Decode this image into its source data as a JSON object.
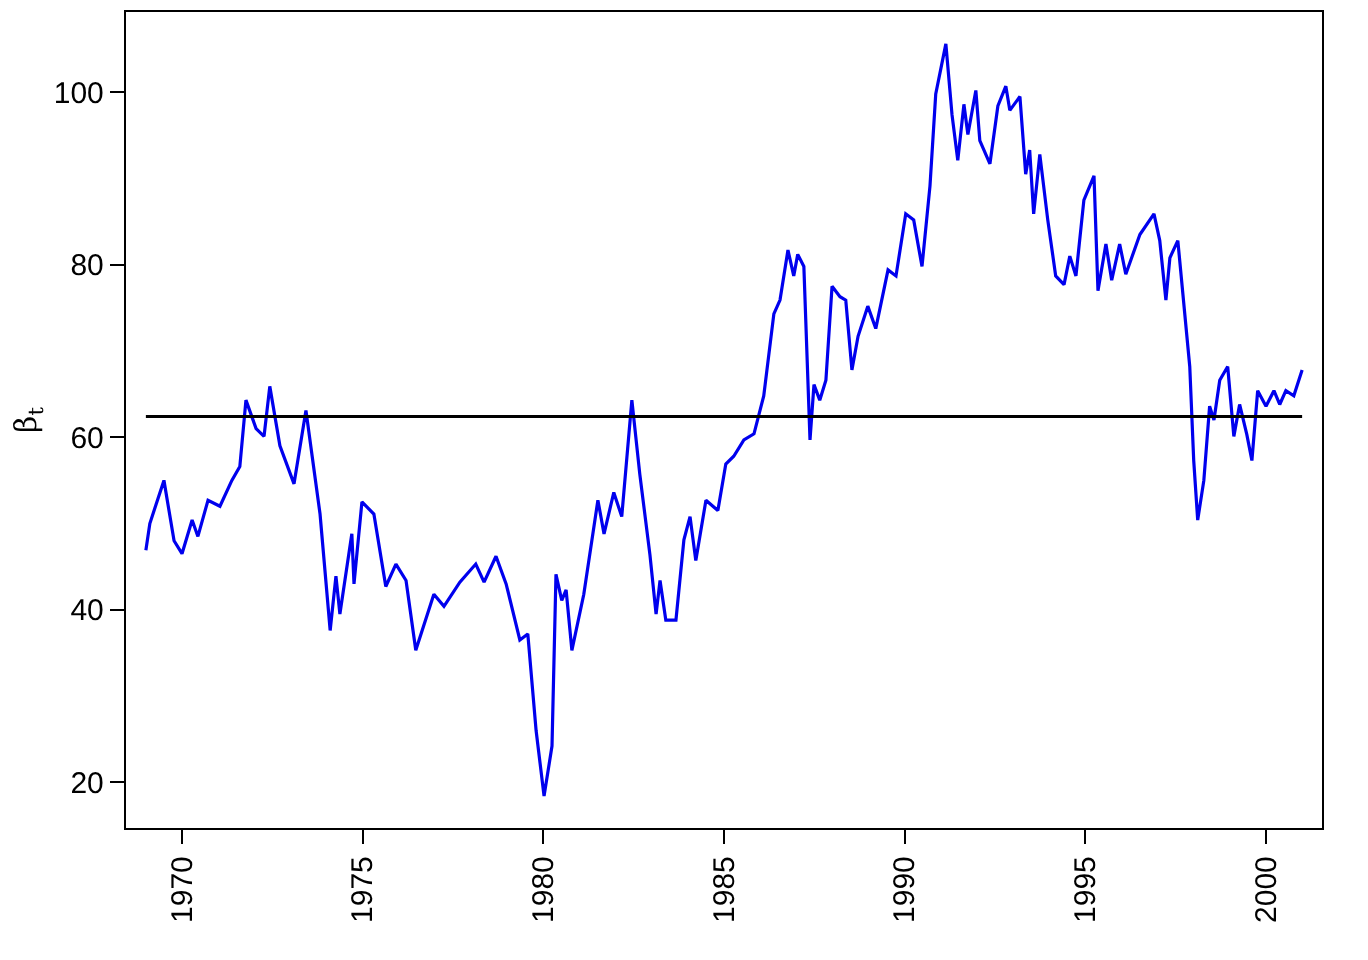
{
  "chart_data": {
    "type": "line",
    "ylabel": "β$_{t}$",
    "x": [
      1969.0,
      1969.11,
      1969.5,
      1969.78,
      1970.0,
      1970.28,
      1970.44,
      1970.72,
      1971.05,
      1971.38,
      1971.6,
      1971.77,
      1972.05,
      1972.27,
      1972.43,
      1972.71,
      1973.1,
      1973.43,
      1973.82,
      1974.1,
      1974.26,
      1974.37,
      1974.7,
      1974.76,
      1974.98,
      1975.31,
      1975.64,
      1975.92,
      1976.2,
      1976.47,
      1976.97,
      1977.25,
      1977.69,
      1978.13,
      1978.36,
      1978.69,
      1978.97,
      1979.35,
      1979.57,
      1979.8,
      1980.02,
      1980.24,
      1980.35,
      1980.51,
      1980.63,
      1980.79,
      1981.12,
      1981.51,
      1981.68,
      1981.95,
      1982.17,
      1982.45,
      1982.67,
      1982.95,
      1983.12,
      1983.23,
      1983.39,
      1983.67,
      1983.89,
      1984.06,
      1984.22,
      1984.5,
      1984.83,
      1985.05,
      1985.27,
      1985.55,
      1985.83,
      1986.1,
      1986.38,
      1986.55,
      1986.77,
      1986.93,
      1987.04,
      1987.21,
      1987.38,
      1987.49,
      1987.65,
      1987.82,
      1987.99,
      1988.21,
      1988.37,
      1988.54,
      1988.71,
      1988.98,
      1989.2,
      1989.54,
      1989.76,
      1990.03,
      1990.25,
      1990.48,
      1990.7,
      1990.86,
      1991.14,
      1991.31,
      1991.47,
      1991.64,
      1991.75,
      1991.97,
      1992.08,
      1992.36,
      1992.58,
      1992.8,
      1992.91,
      1993.19,
      1993.35,
      1993.46,
      1993.57,
      1993.74,
      1993.96,
      1994.18,
      1994.41,
      1994.57,
      1994.74,
      1994.96,
      1995.24,
      1995.35,
      1995.57,
      1995.73,
      1995.95,
      1996.12,
      1996.51,
      1996.9,
      1997.06,
      1997.23,
      1997.34,
      1997.56,
      1997.89,
      1998.0,
      1998.11,
      1998.28,
      1998.44,
      1998.56,
      1998.72,
      1998.94,
      1999.11,
      1999.27,
      1999.47,
      1999.61,
      1999.77,
      2000.0,
      2000.22,
      2000.38,
      2000.55,
      2000.77,
      2001.0
    ],
    "series": [
      {
        "color": "#0000ee",
        "values": [
          46.9,
          50,
          55,
          48,
          46.5,
          50.4,
          48.5,
          52.7,
          52,
          55,
          56.6,
          64.3,
          61,
          60.1,
          65.9,
          59,
          54.6,
          63.1,
          51.1,
          37.6,
          43.9,
          39.5,
          48.8,
          43,
          52.5,
          51.1,
          42.7,
          45.3,
          43.4,
          35.3,
          41.8,
          40.4,
          43.2,
          45.3,
          43.2,
          46.2,
          43,
          36.5,
          37.2,
          26,
          18.4,
          24.2,
          44.1,
          41.1,
          42.3,
          35.3,
          41.8,
          52.7,
          48.8,
          53.6,
          50.8,
          64.3,
          55.7,
          46.4,
          39.5,
          43.4,
          38.8,
          38.8,
          48.1,
          50.8,
          45.7,
          52.7,
          51.5,
          56.9,
          57.8,
          59.7,
          60.4,
          64.8,
          74.3,
          75.9,
          81.7,
          78.7,
          81.2,
          79.8,
          59.7,
          66.1,
          64.3,
          66.6,
          77.5,
          76.3,
          75.9,
          67.8,
          71.7,
          75.2,
          72.6,
          79.4,
          78.7,
          85.9,
          85.2,
          79.8,
          89.1,
          99.8,
          105.6,
          97.4,
          92.1,
          98.6,
          95.1,
          100.2,
          94.4,
          91.7,
          98.4,
          100.7,
          97.9,
          99.5,
          90.5,
          93.3,
          85.9,
          92.8,
          85.2,
          78.7,
          77.7,
          81,
          78.7,
          87.5,
          90.3,
          77,
          82.4,
          78.2,
          82.4,
          78.9,
          83.5,
          85.9,
          82.8,
          75.9,
          80.8,
          82.8,
          68.2,
          57.3,
          50.4,
          55,
          63.6,
          62,
          66.6,
          68.2,
          60.1,
          63.8,
          60.3,
          57.3,
          65.4,
          63.6,
          65.4,
          63.8,
          65.4,
          64.8,
          67.8
        ]
      }
    ],
    "ref_lines": [
      {
        "axis": "y",
        "value": 62.4,
        "color": "#000000"
      }
    ],
    "xlim": [
      1968.45,
      2001.55
    ],
    "xticks": [
      1970,
      1975,
      1980,
      1985,
      1990,
      1995,
      2000
    ],
    "ylim": [
      14.7,
      109.3
    ],
    "yticks": [
      20,
      40,
      60,
      80,
      100
    ],
    "marker": "none",
    "line_style": "solid"
  }
}
